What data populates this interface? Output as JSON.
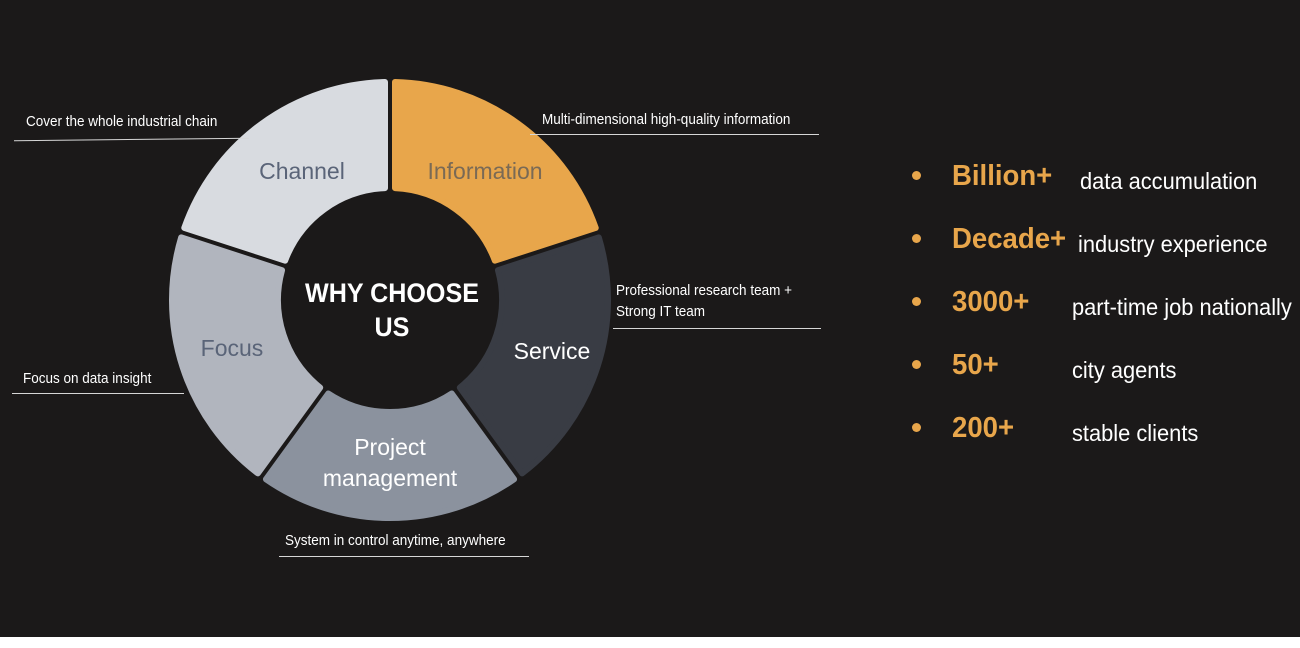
{
  "diagram": {
    "center_title_line1": "WHY CHOOSE",
    "center_title_line2": "US",
    "segments": [
      {
        "label": "Information",
        "color": "#e8a64b",
        "text_color": "#7a6a55"
      },
      {
        "label": "Service",
        "color": "#393c44",
        "text_color": "#ffffff"
      },
      {
        "label_line1": "Project",
        "label_line2": "management",
        "color": "#8b929e",
        "text_color": "#ffffff"
      },
      {
        "label": "Focus",
        "color": "#b1b5be",
        "text_color": "#5a6478"
      },
      {
        "label": "Channel",
        "color": "#d8dbe0",
        "text_color": "#5a6478"
      }
    ],
    "annotations": {
      "information": "Multi-dimensional high-quality information",
      "service_line1": "Professional research team +",
      "service_line2": "Strong IT team",
      "project": "System in control anytime, anywhere",
      "focus": "Focus on data insight",
      "channel": "Cover the whole industrial chain"
    }
  },
  "stats": [
    {
      "value": "Billion+",
      "description": "data accumulation"
    },
    {
      "value": "Decade+",
      "description": "industry experience"
    },
    {
      "value": "3000+",
      "description": "part-time job nationally"
    },
    {
      "value": "50+",
      "description": "city agents"
    },
    {
      "value": "200+",
      "description": "stable clients"
    }
  ],
  "colors": {
    "background": "#1b1919",
    "accent": "#e8a64b",
    "text": "#ffffff"
  }
}
